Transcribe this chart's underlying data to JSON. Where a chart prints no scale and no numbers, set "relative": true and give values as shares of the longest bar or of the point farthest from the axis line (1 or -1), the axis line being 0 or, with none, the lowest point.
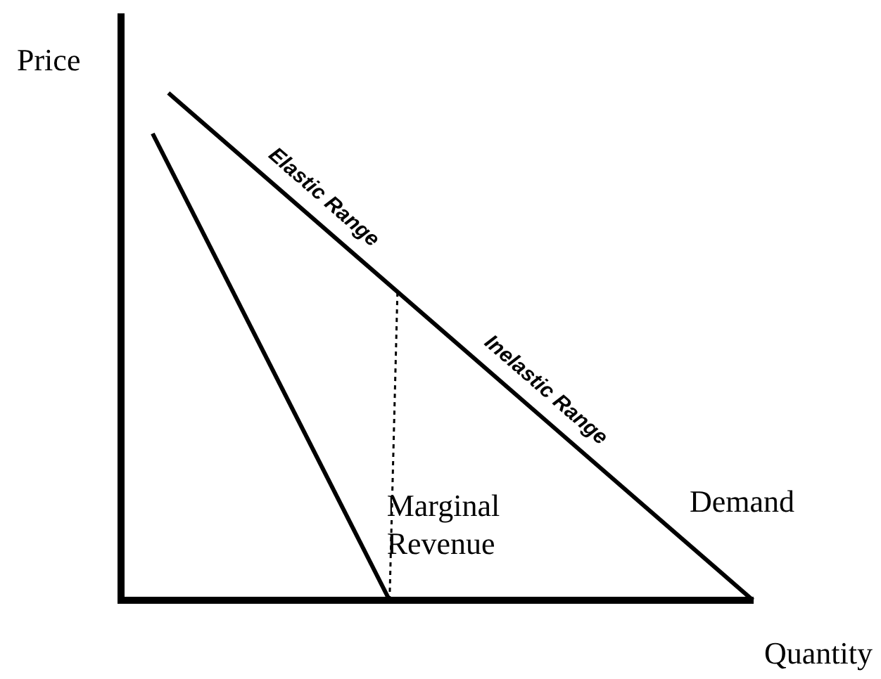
{
  "chart_data": {
    "type": "line",
    "relative": true,
    "xlabel": "Quantity",
    "ylabel": "Price",
    "legend": false,
    "marker": "none",
    "categories": [
      null,
      null,
      null,
      null,
      null,
      null,
      null,
      null,
      null,
      null,
      null,
      null,
      null,
      null,
      null,
      null,
      null,
      null,
      null,
      null,
      null,
      null,
      null,
      null,
      null,
      null,
      null,
      null,
      null,
      null,
      null,
      null,
      null,
      null,
      null,
      null,
      null,
      null,
      null,
      null,
      null,
      null,
      null,
      null,
      null,
      null,
      null,
      null,
      null,
      null,
      null,
      null,
      null,
      null,
      null,
      null,
      null,
      null,
      null,
      null,
      null,
      null,
      null,
      null,
      null,
      null,
      null,
      null,
      null,
      null,
      null,
      null,
      null,
      null,
      null,
      null,
      null,
      null,
      null,
      null,
      null
    ],
    "series": [
      {
        "name": "Demand",
        "color": "#000000",
        "values": [
          null,
          null,
          null,
          null,
          null,
          null,
          1,
          null,
          null,
          null,
          null,
          null,
          null,
          null,
          null,
          null,
          null,
          null,
          null,
          null,
          null,
          null,
          null,
          null,
          null,
          null,
          null,
          null,
          null,
          null,
          null,
          null,
          null,
          null,
          null,
          null,
          null,
          null,
          null,
          null,
          null,
          null,
          null,
          null,
          null,
          null,
          null,
          null,
          null,
          null,
          null,
          null,
          null,
          null,
          null,
          null,
          null,
          null,
          null,
          null,
          null,
          null,
          null,
          null,
          null,
          null,
          null,
          null,
          null,
          null,
          null,
          null,
          null,
          null,
          null,
          null,
          null,
          null,
          null,
          null,
          0
        ],
        "line_style": "solid"
      },
      {
        "name": "Marginal Revenue",
        "color": "#000000",
        "values": [
          null,
          null,
          null,
          null,
          0.92,
          null,
          null,
          null,
          null,
          null,
          null,
          null,
          null,
          null,
          null,
          null,
          null,
          null,
          null,
          null,
          null,
          null,
          null,
          null,
          null,
          null,
          null,
          null,
          null,
          null,
          null,
          null,
          null,
          null,
          0,
          null,
          null,
          null,
          null,
          null,
          null,
          null,
          null,
          null,
          null,
          null,
          null,
          null,
          null,
          null,
          null,
          null,
          null,
          null,
          null,
          null,
          null,
          null,
          null,
          null,
          null,
          null,
          null,
          null,
          null,
          null,
          null,
          null,
          null,
          null,
          null,
          null,
          null,
          null,
          null,
          null,
          null,
          null,
          null,
          null,
          null
        ],
        "line_style": "solid"
      },
      {
        "color": "#000000",
        "values": [
          null,
          null,
          null,
          null,
          null,
          null,
          null,
          null,
          null,
          null,
          null,
          null,
          null,
          null,
          null,
          null,
          null,
          null,
          null,
          null,
          null,
          null,
          null,
          null,
          null,
          null,
          null,
          null,
          null,
          null,
          null,
          null,
          null,
          null,
          0,
          0.61,
          null,
          null,
          null,
          null,
          null,
          null,
          null,
          null,
          null,
          null,
          null,
          null,
          null,
          null,
          null,
          null,
          null,
          null,
          null,
          null,
          null,
          null,
          null,
          null,
          null,
          null,
          null,
          null,
          null,
          null,
          null,
          null,
          null,
          null,
          null,
          null,
          null,
          null,
          null,
          null,
          null,
          null,
          null,
          null,
          null
        ],
        "line_style": "dotted"
      }
    ],
    "annotations": [
      "Elastic Range",
      "Inelastic Range"
    ]
  }
}
